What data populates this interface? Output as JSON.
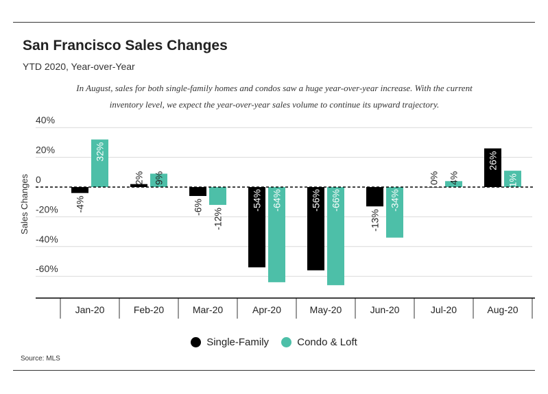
{
  "header": {
    "title": "San Francisco Sales Changes",
    "subtitle": "YTD 2020, Year-over-Year",
    "note_line1": "In August, sales for both single-family homes and condos saw a huge year-over-year increase. With the current",
    "note_line2": "inventory level, we expect the year-over-year sales volume to continue its upward trajectory."
  },
  "source": "Source: MLS",
  "chart_data": {
    "type": "bar",
    "ylabel": "Sales Changes",
    "ylim": [
      -75,
      45
    ],
    "yticks": [
      40,
      20,
      0,
      -20,
      -40,
      -60
    ],
    "ytick_labels": [
      "40%",
      "20%",
      "0",
      "-20%",
      "-40%",
      "-60%"
    ],
    "grid": true,
    "legend": "bottom-center",
    "categories": [
      "Jan-20",
      "Feb-20",
      "Mar-20",
      "Apr-20",
      "May-20",
      "Jun-20",
      "Jul-20",
      "Aug-20"
    ],
    "series": [
      {
        "name": "Single-Family",
        "color": "#000000",
        "values": [
          -4,
          2,
          -6,
          -54,
          -56,
          -13,
          0,
          26
        ],
        "labels": [
          "-4%",
          "2%",
          "-6%",
          "-54%",
          "-56%",
          "-13%",
          "0%",
          "26%"
        ]
      },
      {
        "name": "Condo & Loft",
        "color": "#4dbfa8",
        "values": [
          32,
          9,
          -12,
          -64,
          -66,
          -34,
          4,
          11
        ],
        "labels": [
          "32%",
          "9%",
          "-12%",
          "-64%",
          "-66%",
          "-34%",
          "4%",
          "11%"
        ]
      }
    ]
  }
}
